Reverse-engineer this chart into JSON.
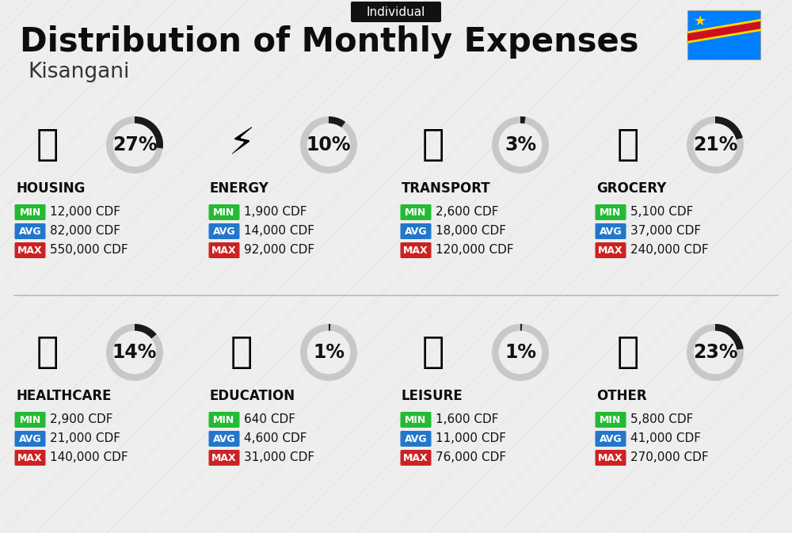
{
  "title": "Distribution of Monthly Expenses",
  "subtitle": "Individual",
  "city": "Kisangani",
  "background_color": "#eeeeee",
  "categories": [
    {
      "name": "HOUSING",
      "percent": 27,
      "min": "12,000 CDF",
      "avg": "82,000 CDF",
      "max": "550,000 CDF",
      "row": 0,
      "col": 0
    },
    {
      "name": "ENERGY",
      "percent": 10,
      "min": "1,900 CDF",
      "avg": "14,000 CDF",
      "max": "92,000 CDF",
      "row": 0,
      "col": 1
    },
    {
      "name": "TRANSPORT",
      "percent": 3,
      "min": "2,600 CDF",
      "avg": "18,000 CDF",
      "max": "120,000 CDF",
      "row": 0,
      "col": 2
    },
    {
      "name": "GROCERY",
      "percent": 21,
      "min": "5,100 CDF",
      "avg": "37,000 CDF",
      "max": "240,000 CDF",
      "row": 0,
      "col": 3
    },
    {
      "name": "HEALTHCARE",
      "percent": 14,
      "min": "2,900 CDF",
      "avg": "21,000 CDF",
      "max": "140,000 CDF",
      "row": 1,
      "col": 0
    },
    {
      "name": "EDUCATION",
      "percent": 1,
      "min": "640 CDF",
      "avg": "4,600 CDF",
      "max": "31,000 CDF",
      "row": 1,
      "col": 1
    },
    {
      "name": "LEISURE",
      "percent": 1,
      "min": "1,600 CDF",
      "avg": "11,000 CDF",
      "max": "76,000 CDF",
      "row": 1,
      "col": 2
    },
    {
      "name": "OTHER",
      "percent": 23,
      "min": "5,800 CDF",
      "avg": "41,000 CDF",
      "max": "270,000 CDF",
      "row": 1,
      "col": 3
    }
  ],
  "color_min": "#22bb33",
  "color_avg": "#2277cc",
  "color_max": "#cc2222",
  "color_label_text": "#ffffff",
  "donut_filled_color": "#1a1a1a",
  "donut_empty_color": "#c8c8c8",
  "title_fontsize": 30,
  "subtitle_fontsize": 11,
  "city_fontsize": 19,
  "category_fontsize": 12,
  "percent_fontsize": 17,
  "value_fontsize": 11,
  "stripe_color": "#d8d8d8",
  "stripe_alpha": 0.5
}
